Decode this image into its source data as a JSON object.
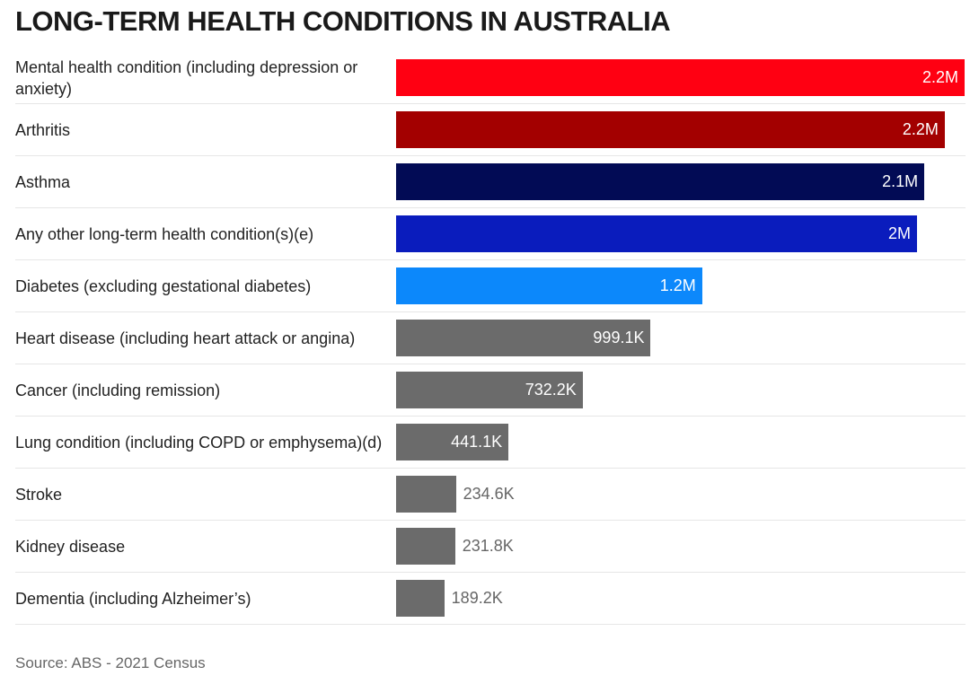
{
  "chart_data": {
    "type": "bar",
    "orientation": "horizontal",
    "title": "LONG-TERM HEALTH CONDITIONS IN AUSTRALIA",
    "categories": [
      "Mental health condition (including depression or anxiety)",
      "Arthritis",
      "Asthma",
      "Any other long-term health condition(s)(e)",
      "Diabetes (excluding gestational diabetes)",
      "Heart disease (including heart attack or angina)",
      "Cancer (including remission)",
      "Lung condition (including COPD or emphysema)(d)",
      "Stroke",
      "Kidney disease",
      "Dementia (including Alzheimer’s)"
    ],
    "values": [
      2231000,
      2153000,
      2073000,
      2044000,
      1201000,
      999100,
      732200,
      441100,
      234600,
      231800,
      189200
    ],
    "value_labels": [
      "2.2M",
      "2.2M",
      "2.1M",
      "2M",
      "1.2M",
      "999.1K",
      "732.2K",
      "441.1K",
      "234.6K",
      "231.8K",
      "189.2K"
    ],
    "colors": [
      "#ff0012",
      "#a30000",
      "#020b55",
      "#0a1cbd",
      "#0c88fb",
      "#6b6b6b",
      "#6b6b6b",
      "#6b6b6b",
      "#6b6b6b",
      "#6b6b6b",
      "#6b6b6b"
    ],
    "source": "Source: ABS - 2021 Census"
  }
}
